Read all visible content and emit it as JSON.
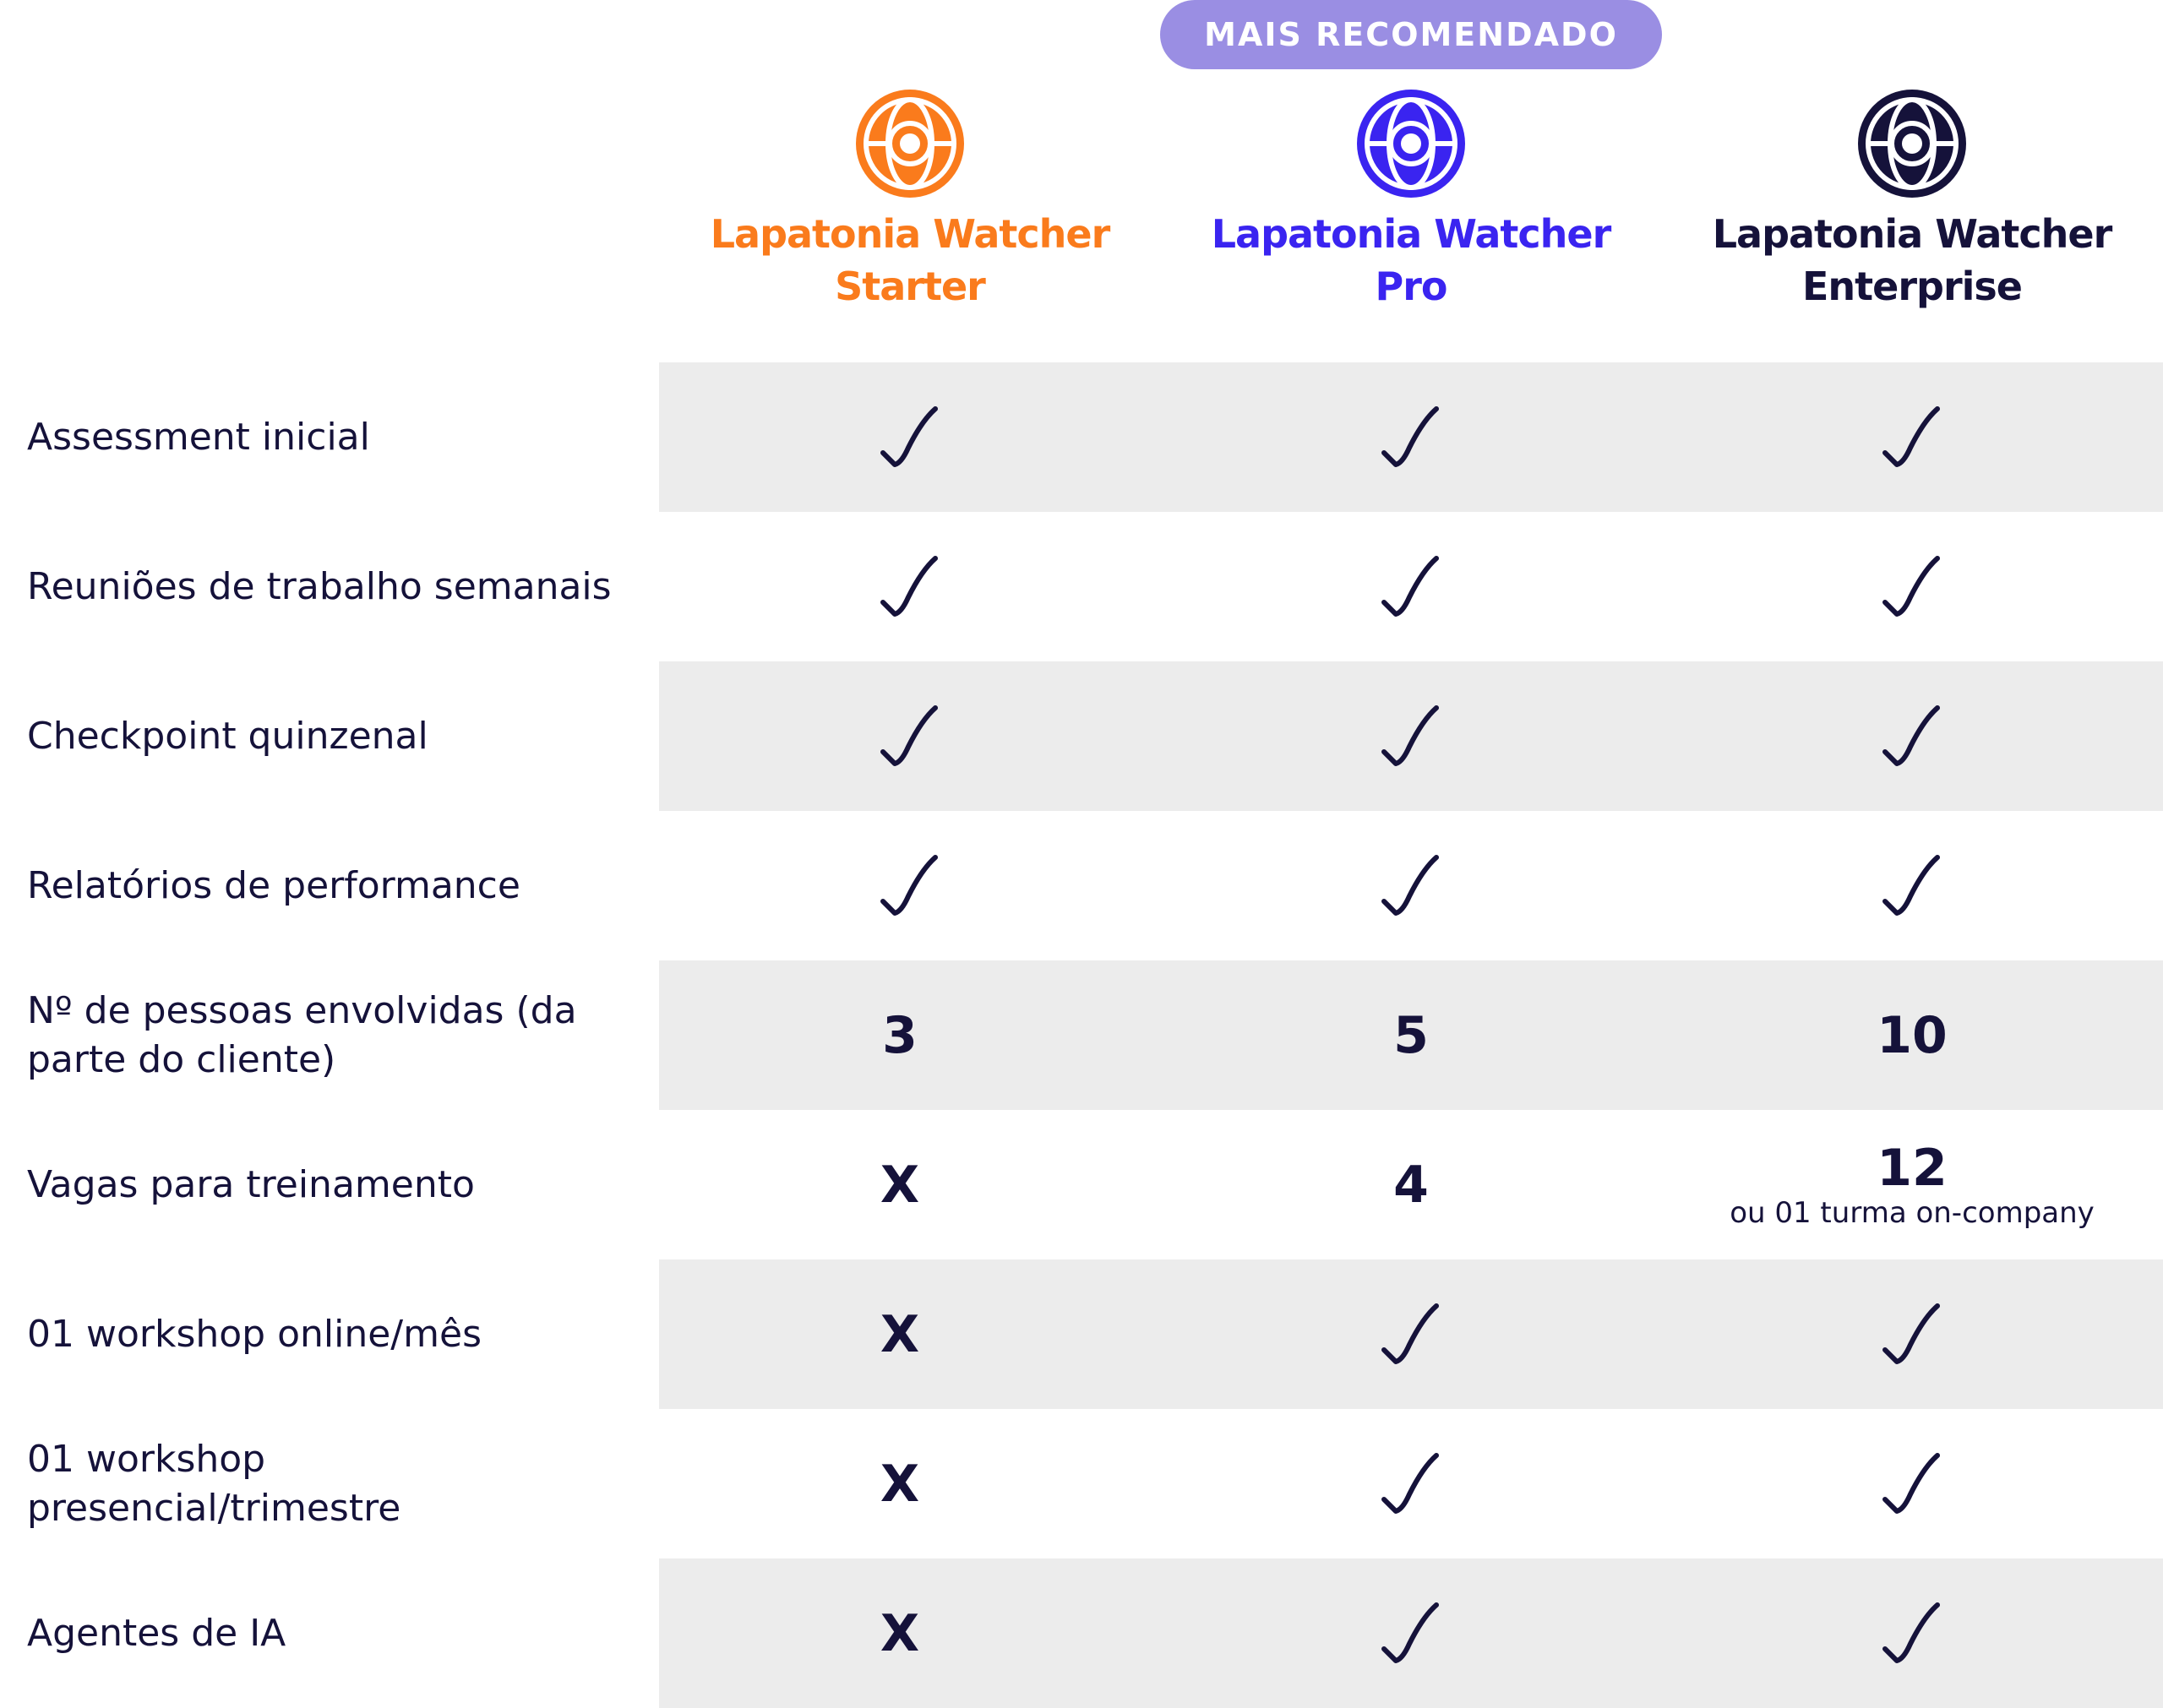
{
  "badge": {
    "label": "MAIS RECOMENDADO",
    "color": "#9a8ee3"
  },
  "plans": [
    {
      "name_line1": "Lapatonia Watcher",
      "name_line2": "Starter",
      "color": "#fa7b1c",
      "icon": "globe-logo-icon"
    },
    {
      "name_line1": "Lapatonia Watcher",
      "name_line2": "Pro",
      "color": "#3a24f0",
      "icon": "globe-logo-icon"
    },
    {
      "name_line1": "Lapatonia Watcher",
      "name_line2": "Enterprise",
      "color": "#15123a",
      "icon": "globe-logo-icon"
    }
  ],
  "features": [
    {
      "label": "Assessment inicial",
      "values": [
        "check",
        "check",
        "check"
      ]
    },
    {
      "label": "Reuniões de trabalho semanais",
      "values": [
        "check",
        "check",
        "check"
      ]
    },
    {
      "label": "Checkpoint quinzenal",
      "values": [
        "check",
        "check",
        "check"
      ]
    },
    {
      "label": "Relatórios de performance",
      "values": [
        "check",
        "check",
        "check"
      ]
    },
    {
      "label": "Nº de pessoas envolvidas (da parte do cliente)",
      "values": [
        "3",
        "5",
        "10"
      ]
    },
    {
      "label": "Vagas para treinamento",
      "values": [
        "X",
        "4",
        "12"
      ],
      "enterprise_note": "ou 01 turma on-company"
    },
    {
      "label": "01 workshop online/mês",
      "values": [
        "X",
        "check",
        "check"
      ]
    },
    {
      "label": "01 workshop presencial/trimestre",
      "values": [
        "X",
        "check",
        "check"
      ]
    },
    {
      "label": "Agentes de IA",
      "values": [
        "X",
        "check",
        "check"
      ]
    }
  ],
  "colors": {
    "text": "#15123a",
    "row_shade": "#ececec"
  }
}
